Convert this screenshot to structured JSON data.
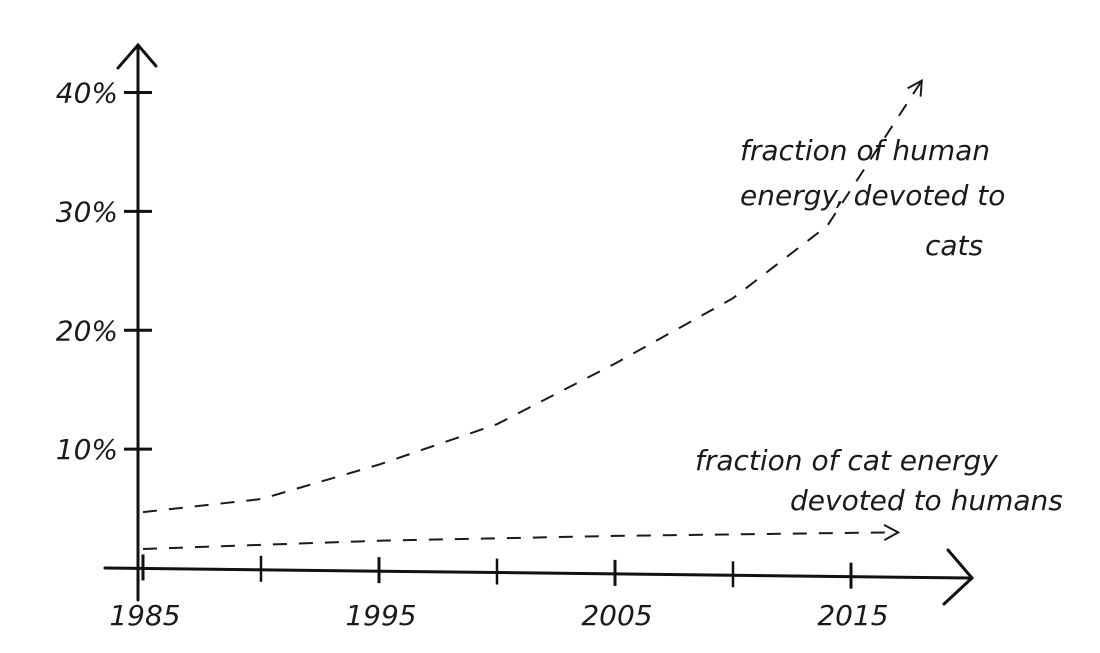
{
  "chart_data": {
    "type": "line",
    "xlim": [
      1985,
      2020
    ],
    "ylim": [
      0,
      44
    ],
    "xticks": [
      1985,
      1995,
      2005,
      2015
    ],
    "xminorticks": [
      1990,
      2000,
      2010
    ],
    "yticks": [
      {
        "value": 10,
        "label": "10%"
      },
      {
        "value": 20,
        "label": "20%"
      },
      {
        "value": 30,
        "label": "30%"
      },
      {
        "value": 40,
        "label": "40%"
      }
    ],
    "color": "#1a1a1a",
    "series": [
      {
        "label": [
          "fraction of human",
          "energy, devoted to",
          "cats"
        ],
        "x": [
          1985,
          1990,
          1995,
          2000,
          2005,
          2010,
          2014,
          2018
        ],
        "values": [
          4.7,
          5.8,
          8.7,
          12.1,
          17.2,
          22.7,
          28.8,
          41
        ]
      },
      {
        "label": [
          "fraction of cat energy",
          "devoted to humans"
        ],
        "x": [
          1985,
          1995,
          2005,
          2017
        ],
        "values": [
          1.6,
          2.3,
          2.7,
          3.0
        ]
      }
    ]
  }
}
